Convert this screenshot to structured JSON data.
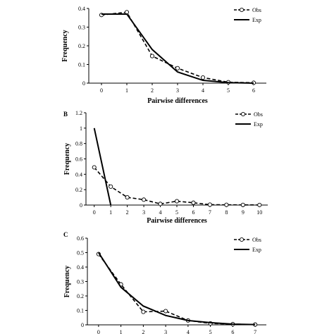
{
  "chart_data": [
    {
      "type": "line",
      "panel_label": "",
      "xlabel": "Pairwise differences",
      "ylabel": "Frequency",
      "x": [
        0,
        1,
        2,
        3,
        4,
        5,
        6
      ],
      "xlim": [
        -0.5,
        6.5
      ],
      "ylim": [
        0,
        0.4
      ],
      "yticks": [
        "0",
        "0.1",
        "0.2",
        "0.3",
        "0.4"
      ],
      "ytick_values": [
        0,
        0.1,
        0.2,
        0.3,
        0.4
      ],
      "legend_position": "top-right",
      "series": [
        {
          "name": "Obs",
          "style": "dashed-circle",
          "values": [
            0.365,
            0.38,
            0.145,
            0.08,
            0.03,
            0.005,
            0.002
          ]
        },
        {
          "name": "Exp",
          "style": "solid",
          "values": [
            0.37,
            0.37,
            0.18,
            0.06,
            0.015,
            0.003,
            0.0
          ]
        }
      ]
    },
    {
      "type": "line",
      "panel_label": "B",
      "xlabel": "Pairwise differences",
      "ylabel": "Frequency",
      "x": [
        0,
        1,
        2,
        3,
        4,
        5,
        6,
        7,
        8,
        9,
        10
      ],
      "xlim": [
        -0.5,
        10.5
      ],
      "ylim": [
        0,
        1.2
      ],
      "yticks": [
        "0",
        "0.2",
        "0.4",
        "0.6",
        "0.8",
        "1",
        "1.2"
      ],
      "ytick_values": [
        0,
        0.2,
        0.4,
        0.6,
        0.8,
        1.0,
        1.2
      ],
      "legend_position": "top-right",
      "series": [
        {
          "name": "Obs",
          "style": "dashed-circle",
          "x": [
            0,
            1,
            2,
            3,
            4,
            5,
            6,
            7,
            8,
            9,
            10
          ],
          "values": [
            0.49,
            0.24,
            0.1,
            0.07,
            0.015,
            0.05,
            0.03,
            0.005,
            0.003,
            0.002,
            0.001
          ]
        },
        {
          "name": "Exp",
          "style": "solid",
          "x": [
            0,
            1
          ],
          "values": [
            1.0,
            0.0
          ]
        }
      ]
    },
    {
      "type": "line",
      "panel_label": "C",
      "xlabel": "",
      "ylabel": "Frequency",
      "x": [
        0,
        1,
        2,
        3,
        4,
        5,
        6,
        7
      ],
      "xlim": [
        -0.5,
        7.5
      ],
      "ylim": [
        0,
        0.6
      ],
      "yticks": [
        "0",
        "0.1",
        "0.2",
        "0.3",
        "0.4",
        "0.5",
        "0.6"
      ],
      "ytick_values": [
        0,
        0.1,
        0.2,
        0.3,
        0.4,
        0.5,
        0.6
      ],
      "legend_position": "top-right",
      "series": [
        {
          "name": "Obs",
          "style": "dashed-circle",
          "values": [
            0.49,
            0.28,
            0.09,
            0.095,
            0.03,
            0.01,
            0.005,
            0.002
          ]
        },
        {
          "name": "Exp",
          "style": "solid",
          "values": [
            0.5,
            0.26,
            0.13,
            0.065,
            0.03,
            0.015,
            0.005,
            0.002
          ]
        }
      ]
    }
  ]
}
